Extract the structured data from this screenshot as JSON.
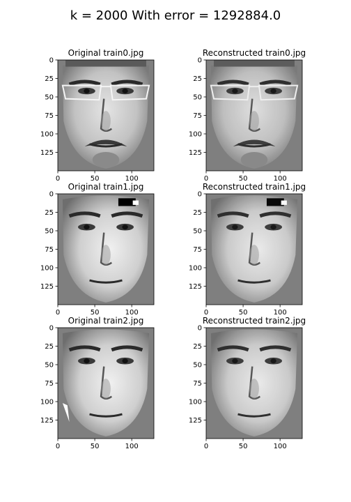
{
  "figure": {
    "suptitle": "k = 2000 With error = 1292884.0"
  },
  "chart_data": [
    {
      "type": "image",
      "title": "Original train0.jpg",
      "xlim": [
        0,
        130
      ],
      "ylim": [
        150,
        0
      ],
      "xticks": [
        0,
        50,
        100
      ],
      "yticks": [
        0,
        25,
        50,
        75,
        100,
        125
      ],
      "image": "grayscale face photograph (train0)",
      "variant": "original"
    },
    {
      "type": "image",
      "title": "Reconstructed train0.jpg",
      "xlim": [
        0,
        130
      ],
      "ylim": [
        150,
        0
      ],
      "xticks": [
        0,
        50,
        100
      ],
      "yticks": [
        0,
        25,
        50,
        75,
        100,
        125
      ],
      "image": "grayscale face photograph (train0)",
      "variant": "reconstructed"
    },
    {
      "type": "image",
      "title": "Original train1.jpg",
      "xlim": [
        0,
        130
      ],
      "ylim": [
        150,
        0
      ],
      "xticks": [
        0,
        50,
        100
      ],
      "yticks": [
        0,
        25,
        50,
        75,
        100,
        125
      ],
      "image": "grayscale face photograph (train1)",
      "variant": "original"
    },
    {
      "type": "image",
      "title": "Reconstructed train1.jpg",
      "xlim": [
        0,
        130
      ],
      "ylim": [
        150,
        0
      ],
      "xticks": [
        0,
        50,
        100
      ],
      "yticks": [
        0,
        25,
        50,
        75,
        100,
        125
      ],
      "image": "grayscale face photograph (train1)",
      "variant": "reconstructed"
    },
    {
      "type": "image",
      "title": "Original train2.jpg",
      "xlim": [
        0,
        130
      ],
      "ylim": [
        150,
        0
      ],
      "xticks": [
        0,
        50,
        100
      ],
      "yticks": [
        0,
        25,
        50,
        75,
        100,
        125
      ],
      "image": "grayscale face photograph (train2)",
      "variant": "original"
    },
    {
      "type": "image",
      "title": "Reconstructed train2.jpg",
      "xlim": [
        0,
        130
      ],
      "ylim": [
        150,
        0
      ],
      "xticks": [
        0,
        50,
        100
      ],
      "yticks": [
        0,
        25,
        50,
        75,
        100,
        125
      ],
      "image": "grayscale face photograph (train2)",
      "variant": "reconstructed"
    }
  ]
}
